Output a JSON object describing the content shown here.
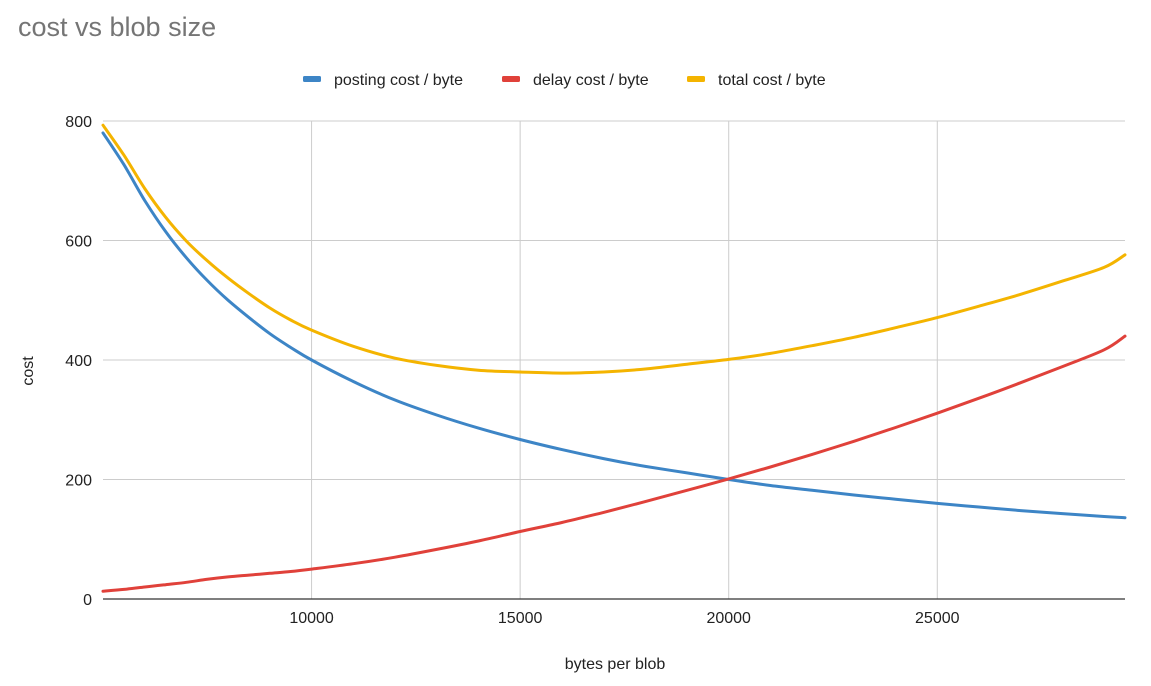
{
  "chart_data": {
    "type": "line",
    "title": "cost vs blob size",
    "xlabel": "bytes per blob",
    "ylabel": "cost",
    "xlim": [
      5000,
      29500
    ],
    "ylim": [
      0,
      800
    ],
    "x_ticks": [
      10000,
      15000,
      20000,
      25000
    ],
    "y_ticks": [
      0,
      200,
      400,
      600,
      800
    ],
    "grid": true,
    "legend_position": "top",
    "x": [
      5000,
      5500,
      6000,
      6500,
      7000,
      7500,
      8000,
      8500,
      9000,
      9500,
      10000,
      11000,
      12000,
      13000,
      14000,
      15000,
      16000,
      17000,
      18000,
      19000,
      20000,
      21000,
      22000,
      23000,
      24000,
      25000,
      26000,
      27000,
      28000,
      29000,
      29500
    ],
    "series": [
      {
        "name": "posting cost / byte",
        "color": "#3D85C6",
        "values": [
          780,
          727,
          667,
          615,
          571,
          533,
          500,
          471,
          444,
          421,
          400,
          364,
          333,
          308,
          286,
          267,
          250,
          235,
          222,
          211,
          200,
          190,
          182,
          174,
          167,
          160,
          154,
          148,
          143,
          138,
          136
        ]
      },
      {
        "name": "delay cost / byte",
        "color": "#E0413A",
        "values": [
          13,
          16,
          20,
          24,
          28,
          33,
          37,
          40,
          43,
          46,
          50,
          59,
          70,
          83,
          97,
          113,
          128,
          145,
          163,
          182,
          201,
          221,
          242,
          264,
          287,
          311,
          336,
          362,
          389,
          417,
          440
        ]
      },
      {
        "name": "total cost / byte",
        "color": "#F4B400",
        "values": [
          793,
          743,
          687,
          639,
          599,
          566,
          537,
          511,
          487,
          467,
          450,
          423,
          403,
          391,
          383,
          380,
          378,
          380,
          385,
          393,
          401,
          411,
          424,
          438,
          454,
          471,
          490,
          510,
          532,
          555,
          576
        ]
      }
    ]
  }
}
